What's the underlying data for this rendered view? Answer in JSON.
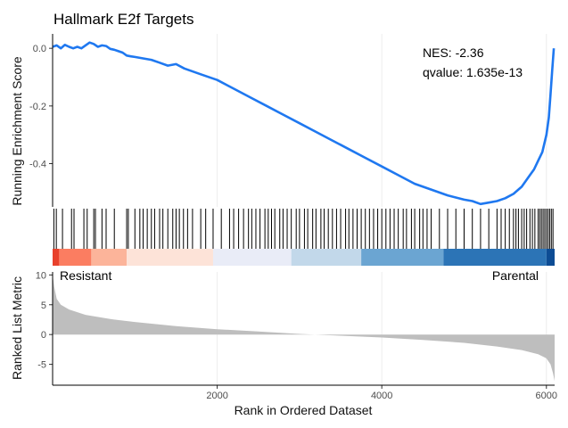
{
  "chart_data": {
    "type": "line",
    "title": "Hallmark E2f Targets",
    "annotations": {
      "nes": "NES: -2.36",
      "qvalue": "qvalue: 1.635e-13"
    },
    "xlabel": "Rank in Ordered Dataset",
    "xlim": [
      0,
      6100
    ],
    "x_ticks": [
      2000,
      4000,
      6000
    ],
    "x_tick_labels": [
      "2000",
      "4000",
      "6000"
    ],
    "panels": [
      {
        "name": "running-enrichment",
        "ylabel": "Running Enrichment Score",
        "ylim": [
          -0.55,
          0.05
        ],
        "y_ticks": [
          0.0,
          -0.2,
          -0.4
        ],
        "y_tick_labels": [
          "0.0",
          "-0.2",
          "-0.4"
        ],
        "series": [
          {
            "name": "Running Enrichment Score",
            "color": "#1f78f0",
            "x": [
              0,
              50,
              100,
              150,
              200,
              250,
              300,
              350,
              400,
              450,
              500,
              550,
              600,
              650,
              700,
              750,
              800,
              850,
              900,
              950,
              1000,
              1100,
              1200,
              1300,
              1400,
              1500,
              1600,
              1800,
              2000,
              2200,
              2400,
              2600,
              2800,
              3000,
              3200,
              3400,
              3600,
              3800,
              4000,
              4200,
              4400,
              4600,
              4800,
              5000,
              5100,
              5200,
              5300,
              5400,
              5500,
              5600,
              5700,
              5800,
              5850,
              5900,
              5950,
              6000,
              6030,
              6050,
              6070,
              6090
            ],
            "y": [
              0.005,
              0.01,
              0.0,
              0.012,
              0.005,
              0.0,
              0.005,
              0.0,
              0.01,
              0.02,
              0.015,
              0.005,
              0.01,
              0.008,
              -0.002,
              -0.005,
              -0.01,
              -0.015,
              -0.025,
              -0.028,
              -0.03,
              -0.035,
              -0.04,
              -0.05,
              -0.06,
              -0.055,
              -0.07,
              -0.09,
              -0.11,
              -0.14,
              -0.17,
              -0.2,
              -0.23,
              -0.26,
              -0.29,
              -0.32,
              -0.35,
              -0.38,
              -0.41,
              -0.44,
              -0.47,
              -0.49,
              -0.51,
              -0.525,
              -0.53,
              -0.54,
              -0.535,
              -0.53,
              -0.52,
              -0.505,
              -0.48,
              -0.44,
              -0.42,
              -0.39,
              -0.36,
              -0.3,
              -0.24,
              -0.16,
              -0.08,
              0.0
            ]
          }
        ]
      },
      {
        "name": "hit-positions",
        "hits": [
          15,
          45,
          120,
          230,
          260,
          380,
          420,
          500,
          520,
          600,
          650,
          750,
          900,
          920,
          1000,
          1060,
          1100,
          1150,
          1200,
          1240,
          1300,
          1340,
          1400,
          1460,
          1500,
          1540,
          1590,
          1640,
          1700,
          1800,
          1860,
          1950,
          2050,
          2150,
          2200,
          2260,
          2320,
          2380,
          2420,
          2470,
          2520,
          2580,
          2620,
          2660,
          2700,
          2760,
          2800,
          2850,
          2900,
          2960,
          3000,
          3060,
          3100,
          3160,
          3200,
          3260,
          3300,
          3350,
          3400,
          3450,
          3500,
          3560,
          3600,
          3650,
          3700,
          3750,
          3800,
          3850,
          3900,
          3950,
          4000,
          4050,
          4100,
          4150,
          4200,
          4260,
          4300,
          4360,
          4400,
          4460,
          4500,
          4550,
          4600,
          4700,
          4800,
          4900,
          5000,
          5100,
          5200,
          5300,
          5400,
          5450,
          5500,
          5550,
          5600,
          5630,
          5660,
          5700,
          5730,
          5760,
          5800,
          5830,
          5860,
          5900,
          5920,
          5940,
          5960,
          5980,
          6000,
          6020,
          6040,
          6060,
          6080
        ]
      },
      {
        "name": "ranked-list-metric",
        "ylabel": "Ranked List Metric",
        "ylim": [
          -8.5,
          10.5
        ],
        "y_ticks": [
          10,
          5,
          0,
          -5
        ],
        "y_tick_labels": [
          "10",
          "5",
          "0",
          "-5"
        ],
        "group_labels": {
          "left": "Resistant",
          "right": "Parental"
        },
        "fill_color": "#bebebe",
        "x": [
          0,
          20,
          50,
          100,
          200,
          400,
          700,
          1000,
          1500,
          2000,
          2500,
          3000,
          3500,
          4000,
          4500,
          5000,
          5400,
          5700,
          5900,
          6000,
          6050,
          6080,
          6100
        ],
        "y": [
          10.0,
          8.0,
          6.0,
          5.0,
          4.2,
          3.3,
          2.6,
          2.1,
          1.4,
          0.9,
          0.5,
          0.1,
          -0.2,
          -0.5,
          -0.9,
          -1.4,
          -2.0,
          -2.6,
          -3.3,
          -4.0,
          -5.0,
          -6.5,
          -7.8
        ]
      }
    ],
    "colorbar": {
      "segments": [
        {
          "from": 0,
          "to": 80,
          "color": "#e8412c"
        },
        {
          "from": 80,
          "to": 470,
          "color": "#fb7d61"
        },
        {
          "from": 470,
          "to": 900,
          "color": "#fcb49a"
        },
        {
          "from": 900,
          "to": 1950,
          "color": "#fde3d8"
        },
        {
          "from": 1950,
          "to": 2900,
          "color": "#e9ecf7"
        },
        {
          "from": 2900,
          "to": 3750,
          "color": "#c2d8ea"
        },
        {
          "from": 3750,
          "to": 4750,
          "color": "#6ba5d2"
        },
        {
          "from": 4750,
          "to": 6000,
          "color": "#2c74b6"
        },
        {
          "from": 6000,
          "to": 6100,
          "color": "#0d4c94"
        }
      ]
    }
  }
}
